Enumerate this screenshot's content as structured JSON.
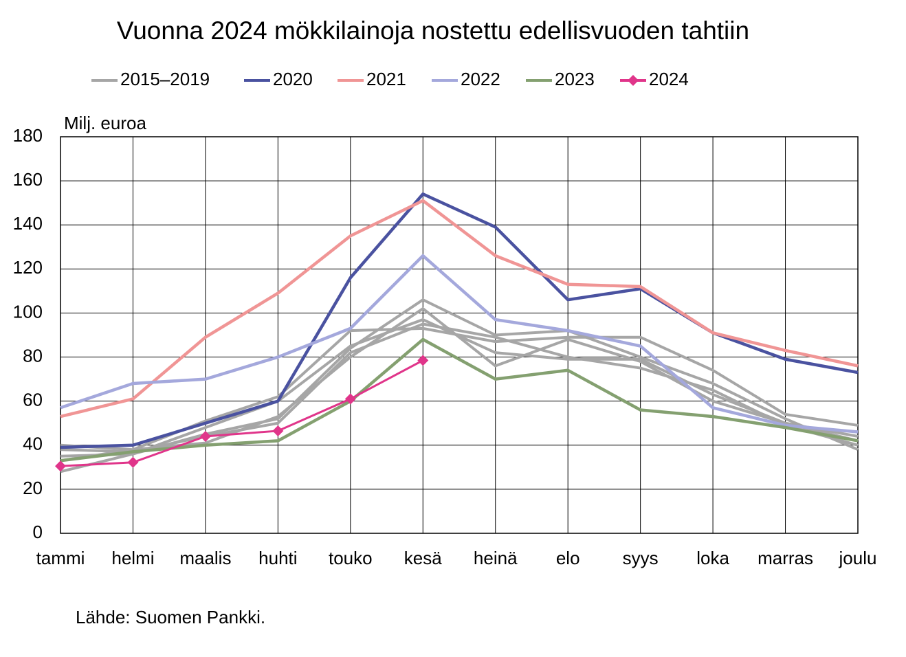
{
  "chart_data": {
    "type": "line",
    "title": "Vuonna 2024 mökkilainoja nostettu edellisvuoden tahtiin",
    "y_label": "Milj. euroa",
    "source": "Lähde: Suomen Pankki.",
    "categories": [
      "tammi",
      "helmi",
      "maalis",
      "huhti",
      "touko",
      "kesä",
      "heinä",
      "elo",
      "syys",
      "loka",
      "marras",
      "joulu"
    ],
    "series": [
      {
        "name": "2015–2019",
        "color": "#a6a6a6",
        "values": [
          [
            40,
            38,
            51,
            62,
            92,
            93,
            87,
            89,
            89,
            74,
            54,
            49
          ],
          [
            28,
            36,
            45,
            52,
            84,
            106,
            90,
            92,
            80,
            68,
            52,
            38
          ],
          [
            33,
            38,
            41,
            53,
            80,
            102,
            76,
            88,
            78,
            60,
            50,
            42
          ],
          [
            35,
            36,
            48,
            60,
            85,
            97,
            82,
            79,
            79,
            63,
            50,
            44
          ],
          [
            38,
            37,
            44,
            50,
            82,
            95,
            89,
            80,
            75,
            65,
            49,
            40
          ]
        ]
      },
      {
        "name": "2020",
        "color": "#4a52a0",
        "values": [
          39,
          40,
          50,
          60,
          116,
          154,
          139,
          106,
          111,
          91,
          79,
          73
        ]
      },
      {
        "name": "2021",
        "color": "#f09595",
        "values": [
          53,
          61,
          89,
          109,
          135,
          151,
          126,
          113,
          112,
          91,
          83,
          76
        ]
      },
      {
        "name": "2022",
        "color": "#a4a8dc",
        "values": [
          57,
          68,
          70,
          80,
          93,
          126,
          97,
          92,
          85,
          57,
          49,
          46
        ]
      },
      {
        "name": "2023",
        "color": "#84a070",
        "values": [
          33,
          37,
          40,
          42,
          60,
          88,
          70,
          74,
          56,
          53,
          48,
          42
        ]
      },
      {
        "name": "2024",
        "color": "#e0358a",
        "marker": "diamond",
        "values": [
          30.5,
          32.2,
          44,
          46.5,
          61,
          78.5,
          null,
          null,
          null,
          null,
          null,
          null
        ]
      }
    ],
    "ylim": [
      0,
      180
    ],
    "yticks": [
      0,
      20,
      40,
      60,
      80,
      100,
      120,
      140,
      160,
      180
    ],
    "grid": true
  }
}
